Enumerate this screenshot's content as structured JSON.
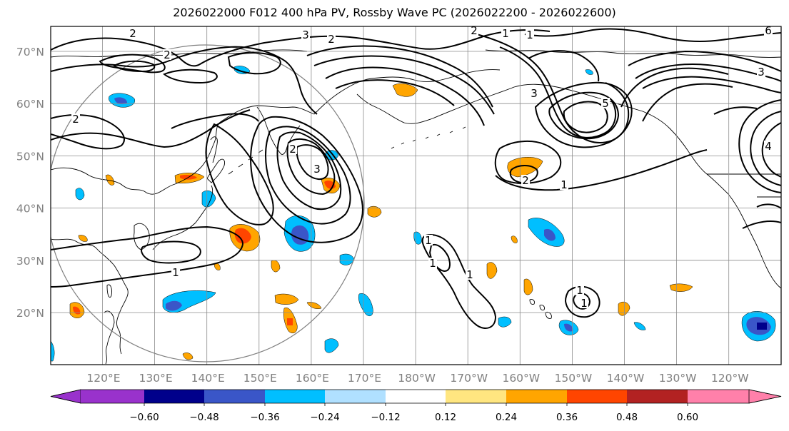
{
  "title": "2026022000 F012 400 hPa PV, Rossby Wave PC (2026022200 - 2026022600)",
  "lat_labels": [
    "70°N",
    "60°N",
    "50°N",
    "40°N",
    "30°N",
    "20°N"
  ],
  "lon_labels": [
    "120°E",
    "130°E",
    "140°E",
    "150°E",
    "160°E",
    "170°E",
    "180°W",
    "170°W",
    "160°W",
    "150°W",
    "140°W",
    "130°W",
    "120°W"
  ],
  "colorbar": {
    "levels": [
      "−0.60",
      "−0.48",
      "−0.36",
      "−0.24",
      "−0.12",
      "0.12",
      "0.24",
      "0.36",
      "0.48",
      "0.60"
    ],
    "colors": [
      "#9932cc",
      "#00008b",
      "#3a56c8",
      "#00bfff",
      "#b0e0ff",
      "#ffffff",
      "#ffe680",
      "#ffa500",
      "#ff4500",
      "#b22222",
      "#ff80aa"
    ]
  },
  "contour_labels": [
    "2",
    "2",
    "3",
    "2",
    "2",
    "2",
    "1",
    "1",
    "3",
    "3",
    "1",
    "2",
    "1",
    "1",
    "1",
    "1",
    "1",
    "1",
    "2",
    "3",
    "4",
    "5",
    "6"
  ],
  "shading_colors": {
    "neg_light": "#00bfff",
    "neg_mid": "#3a56c8",
    "neg_dark": "#00008b",
    "pos_light": "#ffe680",
    "pos_mid": "#ffa500",
    "pos_strong": "#ff4500"
  }
}
